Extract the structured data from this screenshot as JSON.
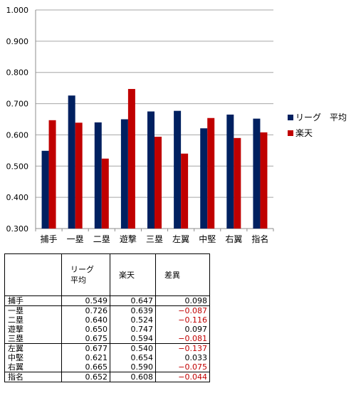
{
  "chart_data": {
    "type": "bar",
    "categories": [
      "捕手",
      "一塁",
      "二塁",
      "遊撃",
      "三塁",
      "左翼",
      "中堅",
      "右翼",
      "指名"
    ],
    "series": [
      {
        "name": "リーグ　平均",
        "color": "#002060",
        "values": [
          0.549,
          0.726,
          0.64,
          0.65,
          0.675,
          0.677,
          0.621,
          0.665,
          0.652
        ]
      },
      {
        "name": "楽天",
        "color": "#c00000",
        "values": [
          0.647,
          0.639,
          0.524,
          0.747,
          0.594,
          0.54,
          0.654,
          0.59,
          0.608
        ]
      }
    ],
    "ylim": [
      0.3,
      1.0
    ],
    "yticks": [
      "0.300",
      "0.400",
      "0.500",
      "0.600",
      "0.700",
      "0.800",
      "0.900",
      "1.000"
    ],
    "grid": true,
    "legend_position": "right"
  },
  "table": {
    "headers": [
      "リーグ\n平均",
      "楽天",
      "差異"
    ],
    "rows": [
      {
        "label": "捕手",
        "league": "0.549",
        "rakuten": "0.647",
        "diff": "0.098",
        "negative": false
      },
      {
        "label": "一塁",
        "league": "0.726",
        "rakuten": "0.639",
        "diff": "−0.087",
        "negative": true
      },
      {
        "label": "二塁",
        "league": "0.640",
        "rakuten": "0.524",
        "diff": "−0.116",
        "negative": true
      },
      {
        "label": "遊撃",
        "league": "0.650",
        "rakuten": "0.747",
        "diff": "0.097",
        "negative": false
      },
      {
        "label": "三塁",
        "league": "0.675",
        "rakuten": "0.594",
        "diff": "−0.081",
        "negative": true
      },
      {
        "label": "左翼",
        "league": "0.677",
        "rakuten": "0.540",
        "diff": "−0.137",
        "negative": true
      },
      {
        "label": "中堅",
        "league": "0.621",
        "rakuten": "0.654",
        "diff": "0.033",
        "negative": false
      },
      {
        "label": "右翼",
        "league": "0.665",
        "rakuten": "0.590",
        "diff": "−0.075",
        "negative": true
      },
      {
        "label": "指名",
        "league": "0.652",
        "rakuten": "0.608",
        "diff": "−0.044",
        "negative": true
      }
    ]
  }
}
